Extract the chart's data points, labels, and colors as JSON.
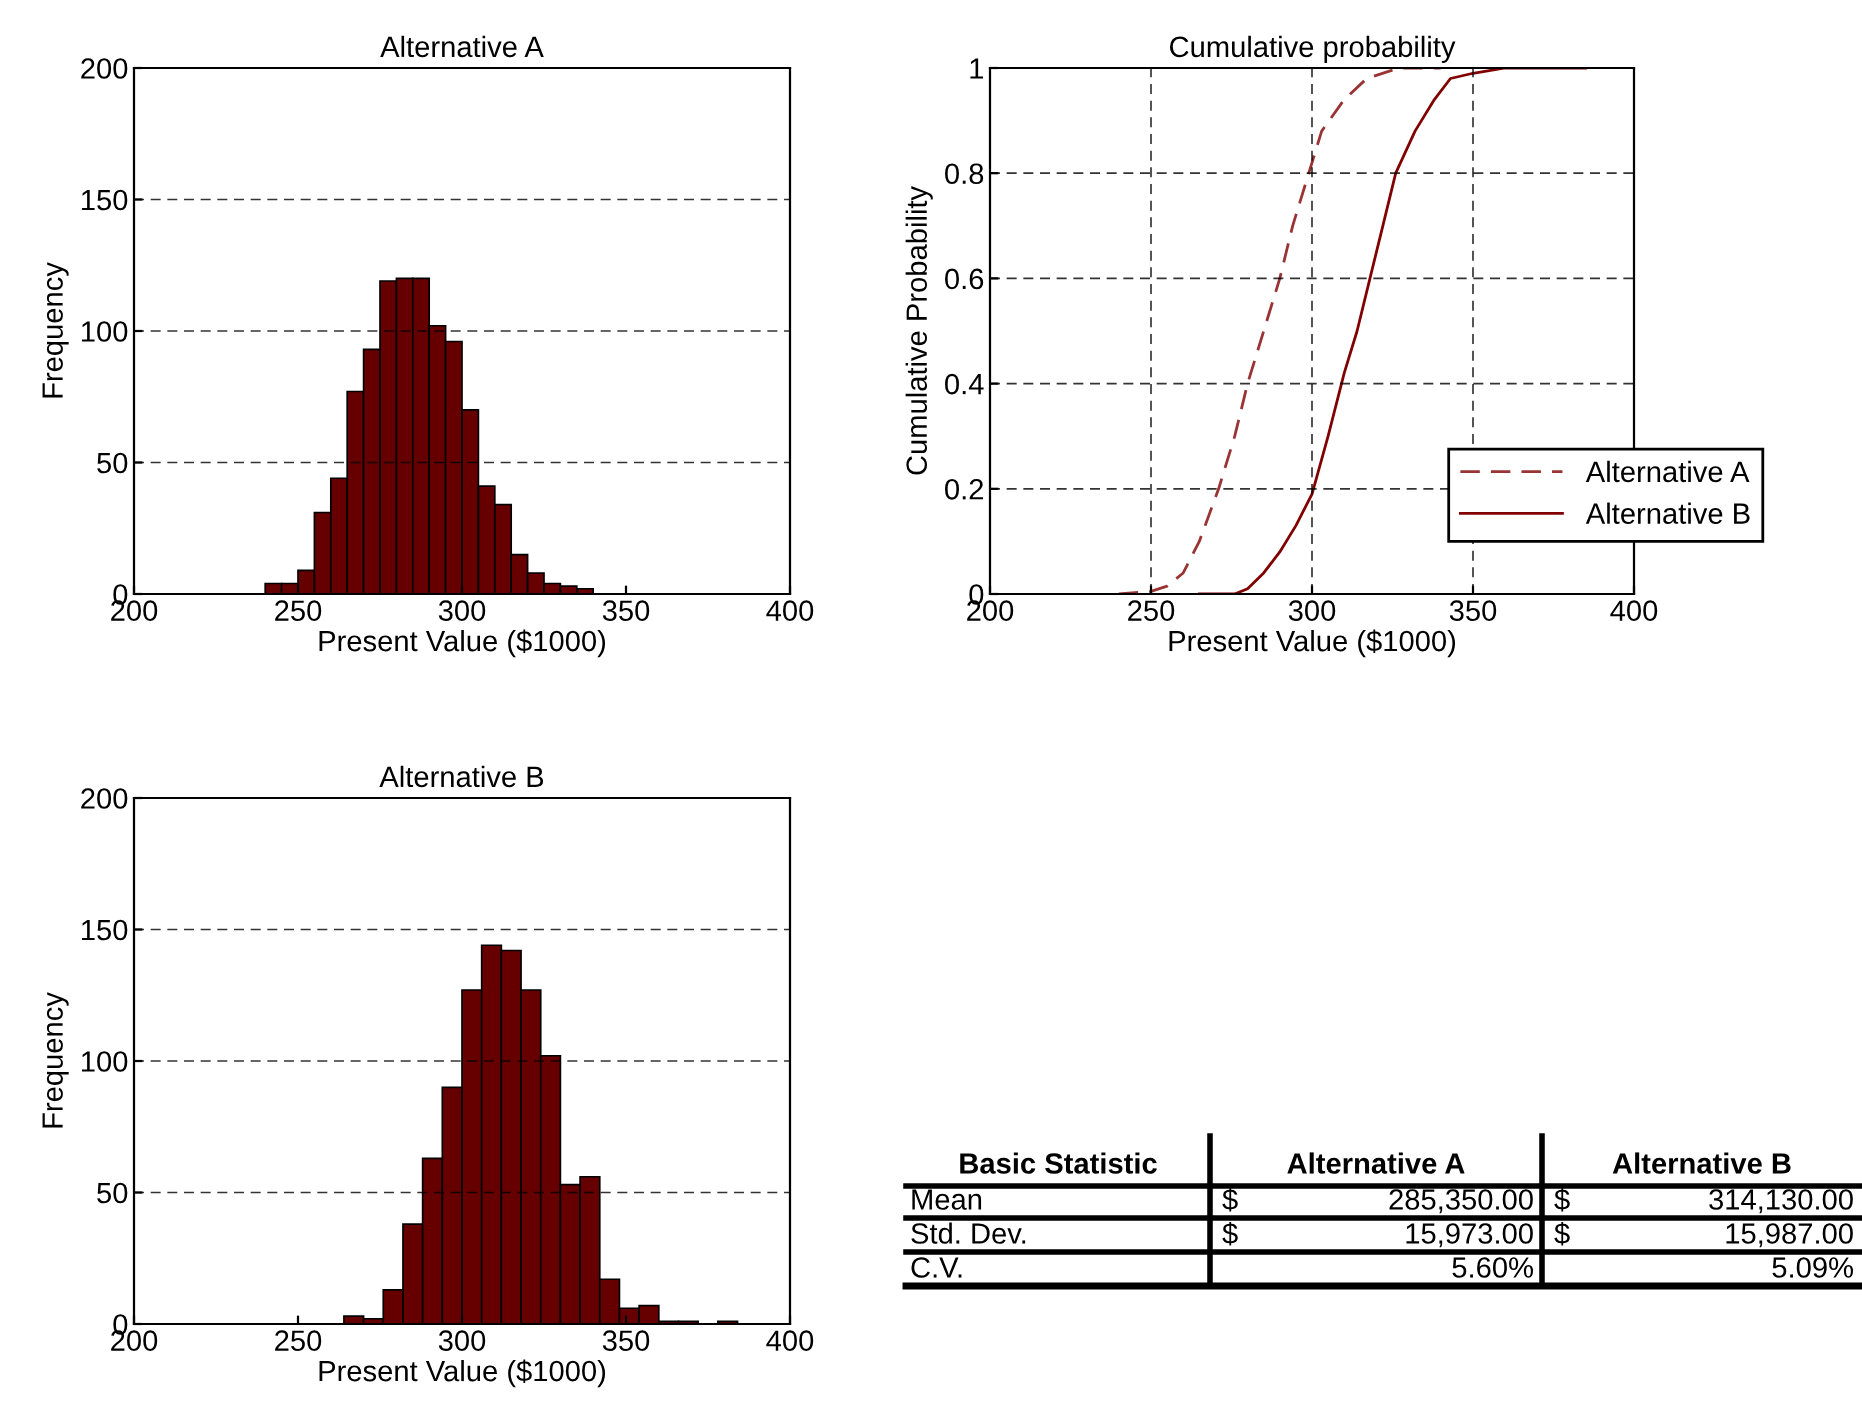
{
  "chart_data": [
    {
      "type": "histogram",
      "title": "Alternative A",
      "xlabel": "Present Value ($1000)",
      "ylabel": "Frequency",
      "color": "#660000",
      "bins": [
        240,
        245,
        250,
        255,
        260,
        265,
        270,
        275,
        280,
        285,
        290,
        295,
        300,
        305,
        310,
        315,
        320,
        325,
        330,
        335,
        340
      ],
      "values": [
        4,
        4,
        9,
        31,
        44,
        77,
        93,
        119,
        120,
        120,
        102,
        96,
        70,
        41,
        34,
        15,
        8,
        4,
        3,
        2
      ],
      "xlim": [
        200,
        400
      ],
      "xticks": [
        200,
        250,
        300,
        350,
        400
      ],
      "ylim": [
        0,
        200
      ],
      "yticks": [
        0,
        50,
        100,
        150,
        200
      ],
      "grid": "y"
    },
    {
      "type": "line",
      "title": "Cumulative probability",
      "xlabel": "Present Value ($1000)",
      "ylabel": "Cumulative Probability",
      "series": [
        {
          "name": "Alternative A",
          "color": "#9a3333",
          "line_style": "dashed",
          "x": [
            240,
            250,
            255,
            260,
            265,
            271,
            276,
            280,
            285,
            290,
            294,
            299,
            303,
            310,
            317,
            327,
            340
          ],
          "values": [
            0,
            0.005,
            0.015,
            0.04,
            0.1,
            0.2,
            0.3,
            0.4,
            0.5,
            0.6,
            0.7,
            0.8,
            0.88,
            0.94,
            0.98,
            1.0,
            1.0
          ]
        },
        {
          "name": "Alternative B",
          "color": "#800000",
          "line_style": "solid",
          "x": [
            265,
            276,
            280,
            285,
            290,
            295,
            300,
            305,
            310,
            314,
            318,
            322,
            326,
            332,
            338,
            343,
            350,
            360,
            385
          ],
          "values": [
            0,
            0,
            0.01,
            0.04,
            0.08,
            0.13,
            0.19,
            0.3,
            0.42,
            0.5,
            0.6,
            0.7,
            0.8,
            0.88,
            0.94,
            0.98,
            0.99,
            1.0,
            1.0
          ]
        }
      ],
      "xlim": [
        200,
        400
      ],
      "xticks": [
        200,
        250,
        300,
        350,
        400
      ],
      "ylim": [
        0,
        1
      ],
      "yticks": [
        0,
        0.2,
        0.4,
        0.6,
        0.8,
        1
      ],
      "grid": true,
      "legend": "bottom right"
    },
    {
      "type": "histogram",
      "title": "Alternative B",
      "xlabel": "Present Value ($1000)",
      "ylabel": "Frequency",
      "color": "#660000",
      "bins": [
        264,
        270,
        276,
        282,
        288,
        294,
        300,
        306,
        312,
        318,
        324,
        330,
        336,
        342,
        348,
        354,
        360,
        366,
        372,
        378,
        384
      ],
      "values": [
        3,
        2,
        13,
        38,
        63,
        90,
        127,
        144,
        142,
        127,
        102,
        53,
        56,
        17,
        6,
        7,
        1,
        1,
        0,
        1
      ],
      "xlim": [
        200,
        400
      ],
      "xticks": [
        200,
        250,
        300,
        350,
        400
      ],
      "ylim": [
        0,
        200
      ],
      "yticks": [
        0,
        50,
        100,
        150,
        200
      ],
      "grid": "y"
    },
    {
      "type": "other",
      "ylabel": "Basic Statistic",
      "categories": [
        "Alternative A",
        "Alternative B"
      ],
      "y_categories": [
        "Mean",
        "Std. Dev.",
        "C.V."
      ],
      "cell_labels": [
        [
          "$ 285,350.00",
          "$ 314,130.00"
        ],
        [
          "$ 15,973.00",
          "$ 15,987.00"
        ],
        [
          "5.60%",
          "5.09%"
        ]
      ]
    }
  ]
}
